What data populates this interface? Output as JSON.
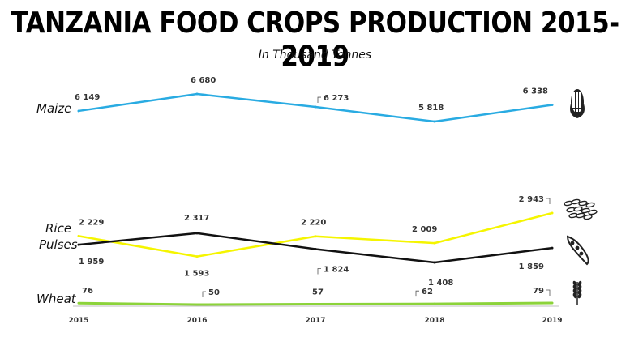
{
  "chart_data": {
    "type": "line",
    "title": "TANZANIA FOOD CROPS PRODUCTION 2015-2019",
    "subtitle": "In Thousand Tonnes",
    "x": [
      "2015",
      "2016",
      "2017",
      "2018",
      "2019"
    ],
    "series": [
      {
        "name": "Maize",
        "values": [
          6149,
          6680,
          6273,
          5818,
          6338
        ],
        "color": "#29ABE2",
        "icon": "corn-icon"
      },
      {
        "name": "Rice",
        "values": [
          2229,
          1593,
          2220,
          2009,
          2943
        ],
        "color": "#F5F500",
        "icon": "rice-icon"
      },
      {
        "name": "Pulses",
        "values": [
          1959,
          2317,
          1824,
          1408,
          1859
        ],
        "color": "#111111",
        "icon": "peas-icon"
      },
      {
        "name": "Wheat",
        "values": [
          76,
          50,
          57,
          62,
          79
        ],
        "color": "#8CD33A",
        "icon": "wheat-icon"
      }
    ],
    "value_labels": [
      [
        "6 149",
        "6 680",
        "6 273",
        "5 818",
        "6 338"
      ],
      [
        "2 229",
        "1 593",
        "2 220",
        "2 009",
        "2 943"
      ],
      [
        "1 959",
        "2 317",
        "1 824",
        "1 408",
        "1 859"
      ],
      [
        "76",
        "50",
        "57",
        "62",
        "79"
      ]
    ],
    "grid": false,
    "legend": "left"
  }
}
